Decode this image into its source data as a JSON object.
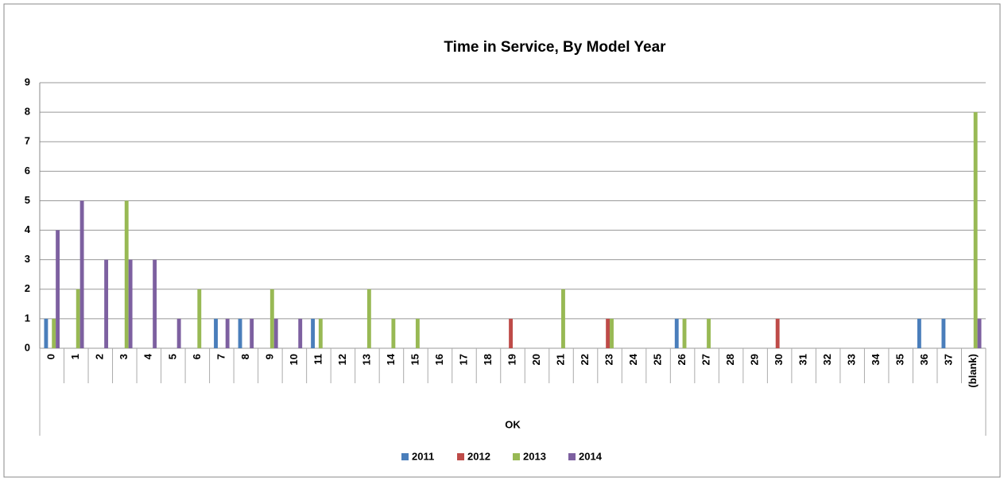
{
  "chart_data": {
    "type": "bar",
    "title": "Time in Service, By Model Year",
    "group_label": "OK",
    "categories": [
      "0",
      "1",
      "2",
      "3",
      "4",
      "5",
      "6",
      "7",
      "8",
      "9",
      "10",
      "11",
      "12",
      "13",
      "14",
      "15",
      "16",
      "17",
      "18",
      "19",
      "20",
      "21",
      "22",
      "23",
      "24",
      "25",
      "26",
      "27",
      "28",
      "29",
      "30",
      "31",
      "32",
      "33",
      "34",
      "35",
      "36",
      "37",
      "(blank)"
    ],
    "series": [
      {
        "name": "2011",
        "color": "#4a7ebb",
        "values": [
          1,
          null,
          null,
          null,
          null,
          null,
          null,
          1,
          1,
          null,
          null,
          1,
          null,
          null,
          null,
          null,
          null,
          null,
          null,
          null,
          null,
          null,
          null,
          null,
          null,
          null,
          1,
          null,
          null,
          null,
          null,
          null,
          null,
          null,
          null,
          null,
          1,
          1,
          null
        ]
      },
      {
        "name": "2012",
        "color": "#be4b48",
        "values": [
          null,
          null,
          null,
          null,
          null,
          null,
          null,
          null,
          null,
          null,
          null,
          null,
          null,
          null,
          null,
          null,
          null,
          null,
          null,
          1,
          null,
          null,
          null,
          1,
          null,
          null,
          null,
          null,
          null,
          null,
          1,
          null,
          null,
          null,
          null,
          null,
          null,
          null,
          null
        ]
      },
      {
        "name": "2013",
        "color": "#98b954",
        "values": [
          1,
          2,
          null,
          5,
          null,
          null,
          2,
          null,
          null,
          2,
          null,
          1,
          null,
          2,
          1,
          1,
          null,
          null,
          null,
          null,
          null,
          2,
          null,
          1,
          null,
          null,
          1,
          1,
          null,
          null,
          null,
          null,
          null,
          null,
          null,
          null,
          null,
          null,
          8
        ]
      },
      {
        "name": "2014",
        "color": "#7d60a0",
        "values": [
          4,
          5,
          3,
          3,
          3,
          1,
          null,
          1,
          1,
          1,
          1,
          null,
          null,
          null,
          null,
          null,
          null,
          null,
          null,
          null,
          null,
          null,
          null,
          null,
          null,
          null,
          null,
          null,
          null,
          null,
          null,
          null,
          null,
          null,
          null,
          null,
          null,
          null,
          1
        ]
      }
    ],
    "ylim": [
      0,
      9
    ],
    "yticks": [
      0,
      1,
      2,
      3,
      4,
      5,
      6,
      7,
      8,
      9
    ],
    "grid": true,
    "legend": "bottom"
  }
}
